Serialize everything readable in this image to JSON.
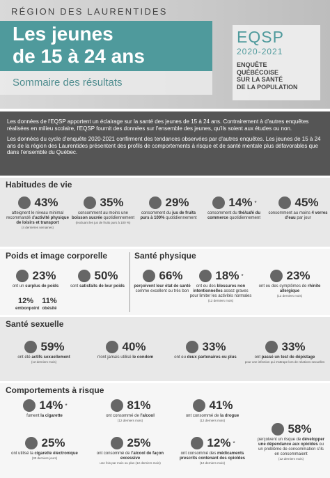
{
  "header": {
    "region": "RÉGION DES LAURENTIDES",
    "title_lines": [
      "Les jeunes",
      "de 15 à 24 ans"
    ],
    "subtitle": "Sommaire des résultats",
    "survey": "EQSP",
    "years": "2020-2021",
    "survey_lines": [
      "ENQUÊTE",
      "QUÉBÉCOISE",
      "SUR LA SANTÉ",
      "DE LA POPULATION"
    ]
  },
  "intro": [
    "Les données de l'EQSP apportent un éclairage sur la santé des jeunes de 15 à 24 ans. Contrairement à d'autres enquêtes réalisées en milieu scolaire, l'EQSP fournit des données sur l'ensemble des jeunes, qu'ils soient aux études ou non.",
    "Les données du cycle d'enquête 2020-2021 confirment des tendances observées par d'autres enquêtes. Les jeunes de 15 à 24 ans de la région des Laurentides présentent des profils de comportements à risque et de santé mentale plus défavorables que dans l'ensemble du Québec."
  ],
  "sections": [
    {
      "title": "Habitudes de vie",
      "items": [
        {
          "stat": "43%",
          "pre": "atteignent le niveau minimal recommandé d'",
          "bold": "activité physique de loisirs et transport",
          "note": "(4 dernières semaines)"
        },
        {
          "stat": "35%",
          "pre": "consomment au moins une ",
          "bold": "boisson sucrée",
          "post": " quotidiennement",
          "note": "(excluant les jus de fruits purs à 100 %)"
        },
        {
          "stat": "29%",
          "pre": "consomment du ",
          "bold": "jus de fruits purs à 100%",
          "post": " quotidiennement"
        },
        {
          "stat": "14%",
          "flag": "*",
          "pre": "consomment du ",
          "bold": "thé/café du commerce",
          "post": " quotidiennement"
        },
        {
          "stat": "45%",
          "pre": "consomment au moins ",
          "bold": "4 verres d'eau",
          "post": " par jour"
        }
      ]
    },
    {
      "title": "Poids et image corporelle",
      "items": [
        {
          "stat": "23%",
          "pre": "ont un ",
          "bold": "surplus de poids"
        },
        {
          "stat": "12%",
          "bold": "embonpoint"
        },
        {
          "stat": "11%",
          "bold": "obésité"
        },
        {
          "stat": "50%",
          "pre": "sont ",
          "bold": "satisfaits de leur poids"
        }
      ]
    },
    {
      "title": "Santé physique",
      "items": [
        {
          "stat": "66%",
          "bold": "perçoivent leur état de santé",
          "post": " comme excellent ou très bon"
        },
        {
          "stat": "18%",
          "flag": "*",
          "pre": "ont eu des ",
          "bold": "blessures non intentionnelles",
          "post": " assez graves pour limiter les activités normales",
          "note": "(12 derniers mois)"
        },
        {
          "stat": "23%",
          "pre": "ont eu des symptômes de ",
          "bold": "rhinite allergique",
          "note": "(12 derniers mois)"
        }
      ]
    },
    {
      "title": "Santé sexuelle",
      "items": [
        {
          "stat": "59%",
          "pre": "ont été ",
          "bold": "actifs sexuellement",
          "note": "(12 derniers mois)"
        },
        {
          "stat": "40%",
          "pre": "n'ont jamais utilisé ",
          "bold": "le condom"
        },
        {
          "stat": "33%",
          "pre": "ont eu ",
          "bold": "deux partenaires ou plus"
        },
        {
          "stat": "33%",
          "pre": "ont ",
          "bold": "passé un test de dépistage",
          "note": "pour une infection qui s'attrape lors de relations sexuelles"
        }
      ]
    },
    {
      "title": "Comportements à risque",
      "items": [
        {
          "stat": "14%",
          "flag": "*",
          "pre": "fument ",
          "bold": "la cigarette"
        },
        {
          "stat": "81%",
          "pre": "ont consommé de ",
          "bold": "l'alcool",
          "note": "(12 derniers mois)"
        },
        {
          "stat": "41%",
          "pre": "ont consommé de ",
          "bold": "la drogue",
          "note": "(12 derniers mois)"
        },
        {
          "stat": "58%",
          "pre": "perçoivent un risque de ",
          "bold": "développer une dépendance aux opioïdes",
          "post": " ou un problème de consommation s'ils en consommaient",
          "note": "(12 derniers mois)"
        },
        {
          "stat": "25%",
          "pre": "ont utilisé la ",
          "bold": "cigarette électronique",
          "note": "(30 derniers jours)"
        },
        {
          "stat": "25%",
          "pre": "ont consommé de ",
          "bold": "l'alcool de façon excessive",
          "note": "une fois par mois ou plus (12 derniers mois)"
        },
        {
          "stat": "12%",
          "flag": "*",
          "pre": "ont consommé des ",
          "bold": "médicaments prescrits contenant des opioïdes",
          "note": "(12 derniers mois)"
        }
      ]
    }
  ]
}
